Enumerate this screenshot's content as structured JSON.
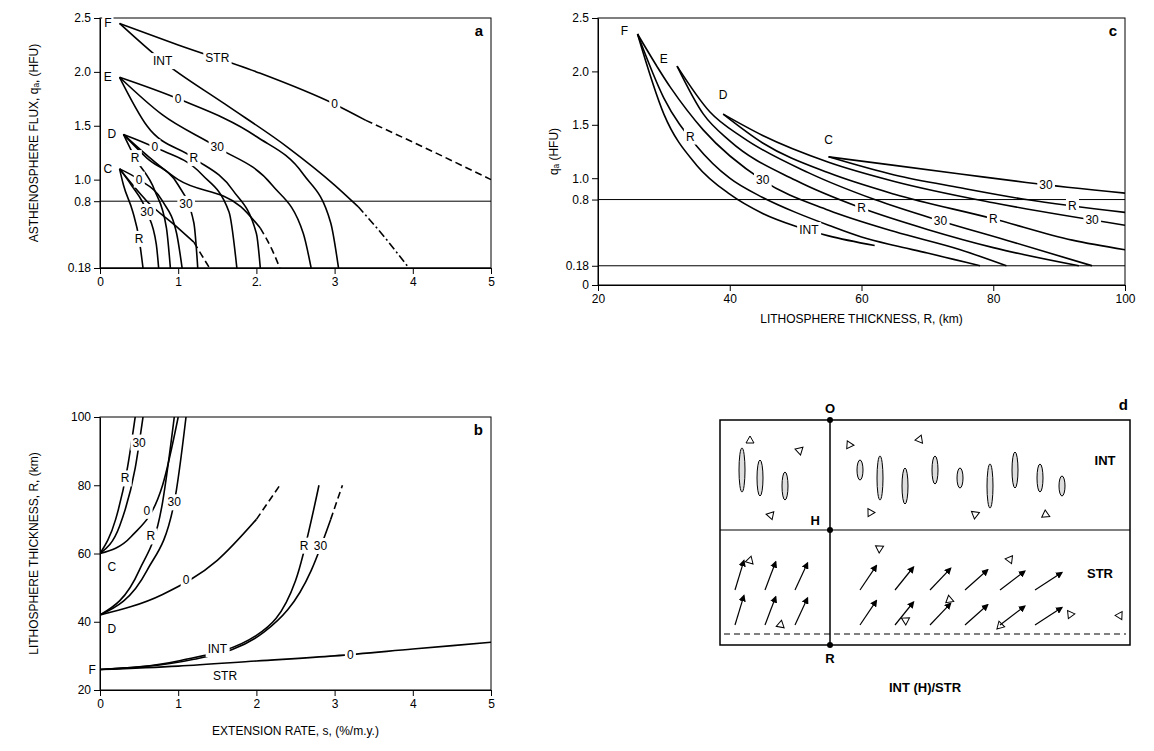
{
  "chart_data": [
    {
      "type": "line",
      "title": "a",
      "ylabel": "ASTHENOSPHERE FLUX, qₐ, (HFU)",
      "xlim": [
        0,
        5
      ],
      "xticks": [
        0,
        1,
        {
          "value": 2,
          "label": "2."
        },
        3,
        4,
        5
      ],
      "ylim": [
        0.18,
        2.5
      ],
      "yticks": [
        0.18,
        0.8,
        {
          "value": 1,
          "label": "1.0"
        },
        1.5,
        {
          "value": 2,
          "label": "2.0"
        },
        2.5
      ],
      "hlines": [
        0.18,
        0.8
      ],
      "series": [
        {
          "x": [
            0.25,
            1,
            2,
            3,
            3.4
          ],
          "values": [
            2.45,
            2.25,
            2.0,
            1.7,
            1.55
          ],
          "line_style": "solid"
        },
        {
          "x": [
            3.4,
            4.2,
            5
          ],
          "values": [
            1.55,
            1.28,
            1.0
          ],
          "line_style": "dashed"
        },
        {
          "x": [
            0.25,
            0.8,
            1.6,
            2.4,
            3.0,
            3.3
          ],
          "values": [
            2.45,
            2.1,
            1.7,
            1.3,
            0.95,
            0.75
          ],
          "line_style": "solid"
        },
        {
          "x": [
            3.3,
            3.6,
            3.95
          ],
          "values": [
            0.75,
            0.5,
            0.18
          ],
          "line_style": "dashdot"
        },
        {
          "x": [
            0.25,
            1,
            2,
            2.6,
            2.95,
            3.05
          ],
          "values": [
            1.95,
            1.75,
            1.4,
            1.05,
            0.6,
            0.18
          ],
          "line_style": "solid"
        },
        {
          "x": [
            0.25,
            0.8,
            1.5,
            2.2,
            2.6,
            2.7
          ],
          "values": [
            1.95,
            1.6,
            1.3,
            0.95,
            0.5,
            0.18
          ],
          "line_style": "solid"
        },
        {
          "x": [
            0.25,
            0.6,
            1.2,
            1.7,
            2.0,
            2.05
          ],
          "values": [
            1.95,
            1.5,
            1.2,
            0.9,
            0.5,
            0.18
          ],
          "line_style": "solid"
        },
        {
          "x": [
            0.3,
            0.7,
            1.3,
            1.65,
            1.75
          ],
          "values": [
            1.42,
            1.3,
            1.05,
            0.7,
            0.18
          ],
          "line_style": "solid"
        },
        {
          "x": [
            0.3,
            0.6,
            1.0,
            1.2,
            1.25
          ],
          "values": [
            1.42,
            1.2,
            0.95,
            0.6,
            0.18
          ],
          "line_style": "solid"
        },
        {
          "x": [
            0.3,
            0.45,
            0.7,
            0.85,
            0.9
          ],
          "values": [
            1.42,
            1.2,
            0.9,
            0.55,
            0.18
          ],
          "line_style": "solid"
        },
        {
          "x": [
            0.3,
            1.0,
            1.8,
            2.05
          ],
          "values": [
            1.42,
            1.0,
            0.75,
            0.55
          ],
          "line_style": "solid"
        },
        {
          "x": [
            2.05,
            2.2,
            2.3
          ],
          "values": [
            0.55,
            0.35,
            0.18
          ],
          "line_style": "dashed"
        },
        {
          "x": [
            0.25,
            0.5,
            0.8,
            0.98,
            1.05
          ],
          "values": [
            1.1,
            1.0,
            0.8,
            0.5,
            0.18
          ],
          "line_style": "solid"
        },
        {
          "x": [
            0.25,
            0.4,
            0.6,
            0.72,
            0.75
          ],
          "values": [
            1.1,
            0.95,
            0.7,
            0.4,
            0.18
          ],
          "line_style": "solid"
        },
        {
          "x": [
            0.25,
            0.3,
            0.42,
            0.5,
            0.55
          ],
          "values": [
            1.1,
            0.95,
            0.7,
            0.45,
            0.18
          ],
          "line_style": "solid"
        },
        {
          "x": [
            0.25,
            0.6,
            1.0,
            1.2
          ],
          "values": [
            1.1,
            0.8,
            0.55,
            0.42
          ],
          "line_style": "solid"
        },
        {
          "x": [
            1.2,
            1.3,
            1.4
          ],
          "values": [
            0.42,
            0.3,
            0.18
          ],
          "line_style": "dashed"
        }
      ],
      "annotations": [
        {
          "text": "F",
          "x": 0.1,
          "y": 2.45
        },
        {
          "text": "E",
          "x": 0.1,
          "y": 1.95
        },
        {
          "text": "D",
          "x": 0.15,
          "y": 1.42
        },
        {
          "text": "C",
          "x": 0.1,
          "y": 1.1
        },
        {
          "text": "STR",
          "x": 1.5,
          "y": 2.125
        },
        {
          "text": "0",
          "x": 3.0,
          "y": 1.7
        },
        {
          "text": "INT",
          "x": 0.8,
          "y": 2.1
        },
        {
          "text": "0",
          "x": 1.0,
          "y": 1.75
        },
        {
          "text": "30",
          "x": 1.5,
          "y": 1.3
        },
        {
          "text": "R",
          "x": 1.2,
          "y": 1.2
        },
        {
          "text": "0",
          "x": 0.7,
          "y": 1.3
        },
        {
          "text": "30",
          "x": 1.1,
          "y": 0.775
        },
        {
          "text": "R",
          "x": 0.45,
          "y": 1.2
        },
        {
          "text": "0",
          "x": 0.5,
          "y": 1.0
        },
        {
          "text": "30",
          "x": 0.6,
          "y": 0.7
        },
        {
          "text": "R",
          "x": 0.5,
          "y": 0.45
        }
      ]
    },
    {
      "type": "line",
      "title": "b",
      "xlabel": "EXTENSION RATE, s, (%/m.y.)",
      "ylabel": "LITHOSPHERE THICKNESS, R, (km)",
      "xlim": [
        0,
        5
      ],
      "xticks": [
        0,
        1,
        2,
        3,
        4,
        5
      ],
      "ylim": [
        20,
        100
      ],
      "yticks": [
        20,
        40,
        60,
        80,
        100
      ],
      "series": [
        {
          "x": [
            0,
            0.2,
            0.35,
            0.45
          ],
          "values": [
            60,
            70,
            85,
            100
          ],
          "line_style": "solid"
        },
        {
          "x": [
            0,
            0.25,
            0.45,
            0.55
          ],
          "values": [
            60,
            68,
            85,
            100
          ],
          "line_style": "solid"
        },
        {
          "x": [
            0,
            0.4,
            0.8,
            1.0
          ],
          "values": [
            60,
            65,
            80,
            100
          ],
          "line_style": "solid"
        },
        {
          "x": [
            0,
            0.5,
            0.8,
            0.95
          ],
          "values": [
            42,
            55,
            75,
            100
          ],
          "line_style": "solid"
        },
        {
          "x": [
            0,
            0.6,
            0.95,
            1.1
          ],
          "values": [
            42,
            55,
            75,
            100
          ],
          "line_style": "solid"
        },
        {
          "x": [
            0,
            0.8,
            1.5,
            2.0
          ],
          "values": [
            42,
            48,
            58,
            70
          ],
          "line_style": "solid"
        },
        {
          "x": [
            2.0,
            2.3
          ],
          "values": [
            70,
            80
          ],
          "line_style": "dashed"
        },
        {
          "x": [
            0,
            1,
            2,
            2.5,
            2.8
          ],
          "values": [
            26,
            28.5,
            36,
            52,
            80
          ],
          "line_style": "solid"
        },
        {
          "x": [
            0,
            1.2,
            2.1,
            2.7,
            2.95
          ],
          "values": [
            26,
            29,
            37,
            55,
            70
          ],
          "line_style": "solid"
        },
        {
          "x": [
            2.95,
            3.1
          ],
          "values": [
            70,
            80
          ],
          "line_style": "dashed"
        },
        {
          "x": [
            0,
            1,
            2,
            3,
            4,
            5
          ],
          "values": [
            26,
            27,
            28.5,
            30,
            32,
            34
          ],
          "line_style": "solid"
        }
      ],
      "annotations": [
        {
          "text": "C",
          "x": 0.15,
          "y": 56
        },
        {
          "text": "D",
          "x": 0.15,
          "y": 38
        },
        {
          "text": "F",
          "x": -0.1,
          "y": 26
        },
        {
          "text": "R",
          "x": 0.32,
          "y": 82
        },
        {
          "text": "30",
          "x": 0.5,
          "y": 92.5
        },
        {
          "text": "0",
          "x": 0.6,
          "y": 72.5
        },
        {
          "text": "R",
          "x": 0.65,
          "y": 65
        },
        {
          "text": "30",
          "x": 0.95,
          "y": 75
        },
        {
          "text": "0",
          "x": 1.1,
          "y": 52.3
        },
        {
          "text": "INT",
          "x": 1.5,
          "y": 32
        },
        {
          "text": "R",
          "x": 2.61,
          "y": 62.3
        },
        {
          "text": "30",
          "x": 2.82,
          "y": 62.2
        },
        {
          "text": "STR",
          "x": 1.6,
          "y": 24
        },
        {
          "text": "0",
          "x": 3.2,
          "y": 30.4
        }
      ]
    },
    {
      "type": "line",
      "title": "c",
      "xlabel": "LITHOSPHERE THICKNESS, R, (km)",
      "ylabel": "qₐ (HFU)",
      "xlim": [
        20,
        100
      ],
      "xticks": [
        20,
        40,
        60,
        80,
        100
      ],
      "ylim": [
        0,
        2.5
      ],
      "yticks": [
        0,
        0.18,
        0.8,
        {
          "value": 1,
          "label": "1.0"
        },
        1.5,
        {
          "value": 2,
          "label": "2.0"
        },
        2.5
      ],
      "hlines": [
        0.18,
        0.8
      ],
      "series": [
        {
          "x": [
            26,
            30,
            35,
            40,
            45,
            50,
            55,
            60,
            65,
            70,
            74,
            78
          ],
          "values": [
            2.35,
            1.75,
            1.3,
            1.0,
            0.82,
            0.68,
            0.56,
            0.45,
            0.37,
            0.3,
            0.24,
            0.18
          ],
          "line_style": "solid"
        },
        {
          "x": [
            26,
            31,
            36,
            45,
            55,
            65,
            75,
            82
          ],
          "values": [
            2.35,
            1.85,
            1.45,
            0.98,
            0.7,
            0.5,
            0.33,
            0.18
          ],
          "line_style": "solid"
        },
        {
          "x": [
            26,
            30,
            35,
            40,
            45,
            50,
            55,
            62
          ],
          "values": [
            2.35,
            1.6,
            1.12,
            0.85,
            0.67,
            0.55,
            0.46,
            0.37
          ],
          "line_style": "solid"
        },
        {
          "x": [
            32,
            36,
            40,
            50,
            60,
            70,
            80,
            93
          ],
          "values": [
            2.05,
            1.6,
            1.35,
            0.98,
            0.72,
            0.52,
            0.35,
            0.18
          ],
          "line_style": "solid"
        },
        {
          "x": [
            32,
            37,
            42,
            52,
            62,
            72,
            82,
            95
          ],
          "values": [
            2.05,
            1.62,
            1.38,
            1.05,
            0.8,
            0.6,
            0.42,
            0.18
          ],
          "line_style": "solid"
        },
        {
          "x": [
            39,
            45,
            55,
            65,
            80,
            92,
            100
          ],
          "values": [
            1.6,
            1.33,
            1.05,
            0.85,
            0.62,
            0.42,
            0.33
          ],
          "line_style": "solid"
        },
        {
          "x": [
            39,
            45,
            55,
            65,
            80,
            100
          ],
          "values": [
            1.6,
            1.4,
            1.15,
            0.97,
            0.77,
            0.56
          ],
          "line_style": "solid"
        },
        {
          "x": [
            55,
            65,
            75,
            85,
            100
          ],
          "values": [
            1.2,
            1.03,
            0.91,
            0.8,
            0.68
          ],
          "line_style": "solid"
        },
        {
          "x": [
            55,
            65,
            75,
            85,
            100
          ],
          "values": [
            1.2,
            1.12,
            1.04,
            0.96,
            0.86
          ],
          "line_style": "solid"
        }
      ],
      "annotations": [
        {
          "text": "F",
          "x": 24,
          "y": 2.38
        },
        {
          "text": "E",
          "x": 30,
          "y": 2.12
        },
        {
          "text": "D",
          "x": 39,
          "y": 1.78
        },
        {
          "text": "C",
          "x": 55,
          "y": 1.36
        },
        {
          "text": "R",
          "x": 34,
          "y": 1.39
        },
        {
          "text": "30",
          "x": 45,
          "y": 0.98
        },
        {
          "text": "INT",
          "x": 52,
          "y": 0.514
        },
        {
          "text": "R",
          "x": 60,
          "y": 0.72
        },
        {
          "text": "30",
          "x": 72,
          "y": 0.6
        },
        {
          "text": "R",
          "x": 80,
          "y": 0.62
        },
        {
          "text": "30",
          "x": 95,
          "y": 0.6125
        },
        {
          "text": "R",
          "x": 92,
          "y": 0.744
        },
        {
          "text": "30",
          "x": 88,
          "y": 0.94
        }
      ]
    }
  ],
  "diagram": {
    "title": "d",
    "levels": [
      "O",
      "H",
      "R"
    ],
    "zones": [
      "INT",
      "STR"
    ],
    "caption": "INT (H)/STR"
  }
}
